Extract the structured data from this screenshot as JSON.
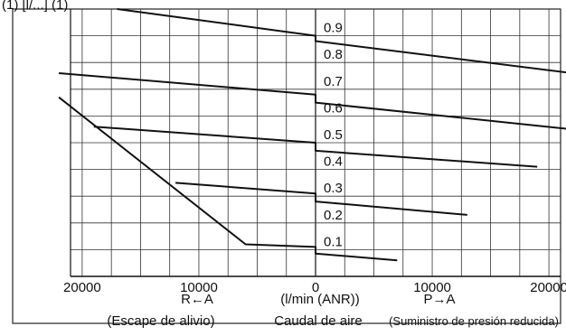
{
  "header_fragment": "(1) [l/...]          (1)",
  "chart_data": {
    "type": "line",
    "x_range": [
      -21000,
      21000
    ],
    "y_range": [
      0,
      1.0
    ],
    "grid": true,
    "x_ticks": [
      {
        "value": -20000,
        "label": "20000"
      },
      {
        "value": -10000,
        "label": "10000"
      },
      {
        "value": 0,
        "label": "0"
      },
      {
        "value": 10000,
        "label": "10000"
      },
      {
        "value": 20000,
        "label": "20000"
      }
    ],
    "y_ticks": [
      "0.1",
      "0.2",
      "0.3",
      "0.4",
      "0.5",
      "0.6",
      "0.7",
      "0.8",
      "0.9"
    ],
    "captions": {
      "left_arrow": "R←A",
      "unit": "(l/min (ANR))",
      "right_arrow": "P→A",
      "left_label": "(Escape de alivio)",
      "center_label": "Caudal de aire",
      "right_label": "(Suministro de presión reducida)"
    },
    "series": [
      {
        "points": [
          [
            -17000,
            1.0
          ],
          [
            0,
            0.9
          ],
          [
            0,
            0.88
          ],
          [
            22000,
            0.76
          ]
        ]
      },
      {
        "points": [
          [
            -22000,
            0.76
          ],
          [
            0,
            0.68
          ],
          [
            0,
            0.65
          ],
          [
            22000,
            0.55
          ]
        ]
      },
      {
        "points": [
          [
            -19000,
            0.56
          ],
          [
            0,
            0.5
          ],
          [
            0,
            0.47
          ],
          [
            19000,
            0.41
          ]
        ]
      },
      {
        "points": [
          [
            -12000,
            0.35
          ],
          [
            0,
            0.31
          ],
          [
            0,
            0.28
          ],
          [
            13000,
            0.23
          ]
        ]
      },
      {
        "points": [
          [
            -22000,
            0.67
          ],
          [
            -6000,
            0.12
          ],
          [
            0,
            0.11
          ],
          [
            0,
            0.085
          ],
          [
            7000,
            0.06
          ]
        ]
      }
    ]
  }
}
